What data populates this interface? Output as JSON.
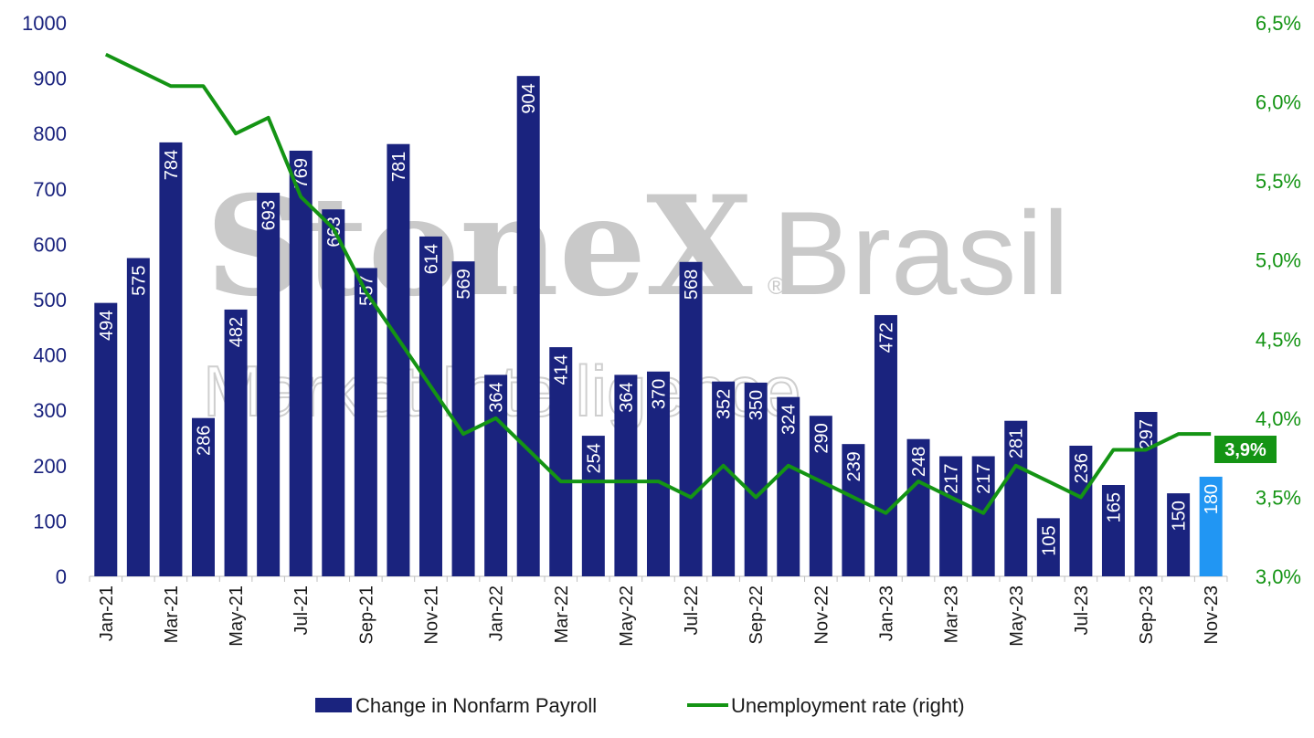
{
  "chart_data": {
    "type": "bar",
    "categories": [
      "Jan-21",
      "Feb-21",
      "Mar-21",
      "Apr-21",
      "May-21",
      "Jun-21",
      "Jul-21",
      "Aug-21",
      "Sep-21",
      "Oct-21",
      "Nov-21",
      "Dec-21",
      "Jan-22",
      "Feb-22",
      "Mar-22",
      "Apr-22",
      "May-22",
      "Jun-22",
      "Jul-22",
      "Aug-22",
      "Sep-22",
      "Oct-22",
      "Nov-22",
      "Dec-22",
      "Jan-23",
      "Feb-23",
      "Mar-23",
      "Apr-23",
      "May-23",
      "Jun-23",
      "Jul-23",
      "Aug-23",
      "Sep-23",
      "Oct-23",
      "Nov-23"
    ],
    "xtick_labels": [
      "Jan-21",
      "Mar-21",
      "May-21",
      "Jul-21",
      "Sep-21",
      "Nov-21",
      "Jan-22",
      "Mar-22",
      "May-22",
      "Jul-22",
      "Sep-22",
      "Nov-22",
      "Jan-23",
      "Mar-23",
      "May-23",
      "Jul-23",
      "Sep-23",
      "Nov-23"
    ],
    "series": [
      {
        "name": "Change in Nonfarm Payroll",
        "axis": "left",
        "color": "#1a237e",
        "highlight_last_color": "#2196f3",
        "values": [
          494,
          575,
          784,
          286,
          482,
          693,
          769,
          663,
          557,
          781,
          614,
          569,
          364,
          904,
          414,
          254,
          364,
          370,
          568,
          352,
          350,
          324,
          290,
          239,
          472,
          248,
          217,
          217,
          281,
          105,
          236,
          165,
          297,
          150,
          180
        ]
      },
      {
        "name": "Unemployment rate (right)",
        "axis": "right",
        "type": "line",
        "color": "#149414",
        "values": [
          6.3,
          6.2,
          6.1,
          6.1,
          5.8,
          5.9,
          5.4,
          5.2,
          4.8,
          4.5,
          4.2,
          3.9,
          4.0,
          3.8,
          3.6,
          3.6,
          3.6,
          3.6,
          3.5,
          3.7,
          3.5,
          3.7,
          3.6,
          3.5,
          3.4,
          3.6,
          3.5,
          3.4,
          3.7,
          3.6,
          3.5,
          3.8,
          3.8,
          3.9,
          3.9
        ]
      }
    ],
    "y_left": {
      "ylim": [
        0,
        1000
      ],
      "ticks": [
        "0",
        "100",
        "200",
        "300",
        "400",
        "500",
        "600",
        "700",
        "800",
        "900",
        "1000"
      ]
    },
    "y_right": {
      "ylim": [
        3.0,
        6.5
      ],
      "ticks": [
        "3,0%",
        "3,5%",
        "4,0%",
        "4,5%",
        "5,0%",
        "5,5%",
        "6,0%",
        "6,5%"
      ]
    },
    "last_value_badge": "3,9%",
    "legend_position": "bottom",
    "grid": false
  },
  "watermark": {
    "brand": "StoneX",
    "registered": "®",
    "country": "Brasil",
    "tagline": "Market Intelligence"
  }
}
